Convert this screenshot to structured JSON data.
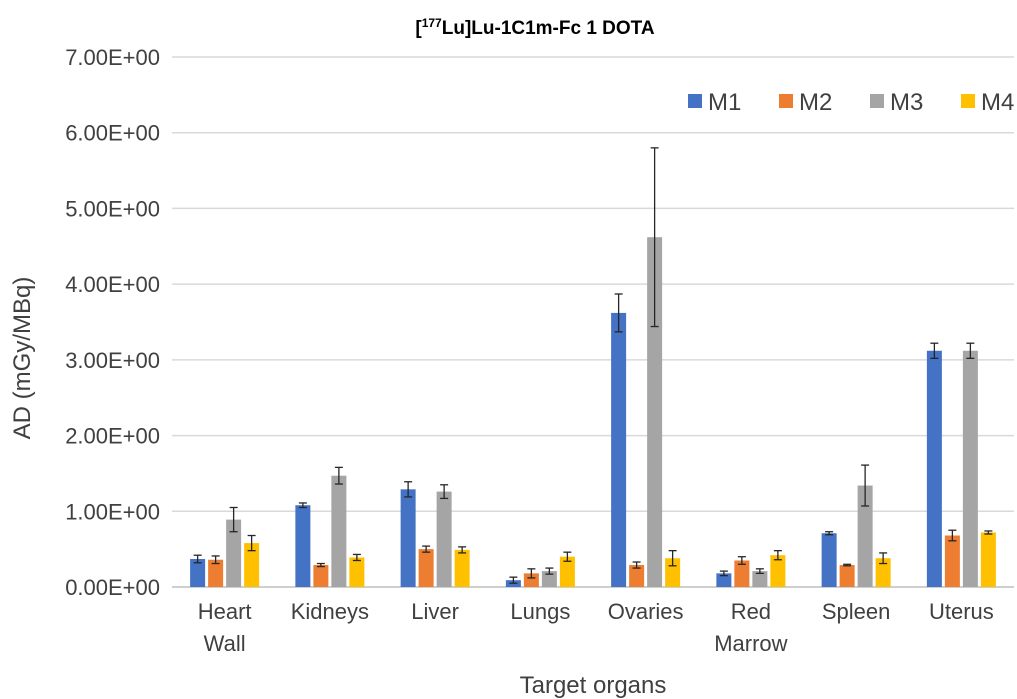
{
  "chart_data": {
    "type": "bar",
    "title": {
      "bracket_open": "[",
      "superscript": "177",
      "rest": "Lu]Lu-1C1m-Fc  1 DOTA"
    },
    "xlabel": "Target organs",
    "ylabel": "AD (mGy/MBq)",
    "ylim": [
      0,
      7
    ],
    "y_ticks": [
      "0.00E+00",
      "1.00E+00",
      "2.00E+00",
      "3.00E+00",
      "4.00E+00",
      "5.00E+00",
      "6.00E+00",
      "7.00E+00"
    ],
    "y_tick_values": [
      0,
      1,
      2,
      3,
      4,
      5,
      6,
      7
    ],
    "grid": "horizontal",
    "legend_position": "top-right",
    "categories": [
      [
        "Heart",
        "Wall"
      ],
      [
        "Kidneys"
      ],
      [
        "Liver"
      ],
      [
        "Lungs"
      ],
      [
        "Ovaries"
      ],
      [
        "Red",
        "Marrow"
      ],
      [
        "Spleen"
      ],
      [
        "Uterus"
      ]
    ],
    "series": [
      {
        "name": "M1",
        "color": "#4472C4",
        "values": [
          0.37,
          1.08,
          1.29,
          0.09,
          3.62,
          0.18,
          0.71,
          3.12
        ],
        "errors": [
          0.05,
          0.03,
          0.1,
          0.04,
          0.25,
          0.03,
          0.02,
          0.1
        ]
      },
      {
        "name": "M2",
        "color": "#ED7D31",
        "values": [
          0.36,
          0.29,
          0.5,
          0.18,
          0.29,
          0.35,
          0.29,
          0.68
        ],
        "errors": [
          0.05,
          0.02,
          0.04,
          0.06,
          0.04,
          0.05,
          0.01,
          0.07
        ]
      },
      {
        "name": "M3",
        "color": "#A5A5A5",
        "values": [
          0.89,
          1.47,
          1.26,
          0.21,
          4.62,
          0.21,
          1.34,
          3.12
        ],
        "errors": [
          0.16,
          0.11,
          0.09,
          0.04,
          1.18,
          0.03,
          0.27,
          0.1
        ]
      },
      {
        "name": "M4",
        "color": "#FFC000",
        "values": [
          0.58,
          0.39,
          0.49,
          0.4,
          0.38,
          0.42,
          0.38,
          0.72
        ],
        "errors": [
          0.1,
          0.04,
          0.04,
          0.06,
          0.1,
          0.06,
          0.07,
          0.02
        ]
      }
    ]
  }
}
